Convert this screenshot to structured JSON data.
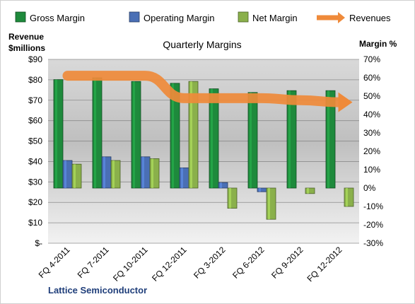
{
  "chart_data": {
    "type": "bar",
    "title": "Quarterly Margins",
    "categories": [
      "FQ 4-2011",
      "FQ 7-2011",
      "FQ 10-2011",
      "FQ 12-2011",
      "FQ 3-2012",
      "FQ 6-2012",
      "FQ 9-2012",
      "FQ 12-2012"
    ],
    "series": [
      {
        "name": "Gross Margin",
        "axis": "right",
        "color": "#1e8a3c",
        "values": [
          59,
          60,
          58,
          57,
          54,
          52,
          53,
          53
        ]
      },
      {
        "name": "Operating Margin",
        "axis": "right",
        "color": "#4a6fb5",
        "values": [
          15,
          17,
          17,
          11,
          3,
          -2,
          0,
          0
        ]
      },
      {
        "name": "Net Margin",
        "axis": "right",
        "color": "#8ab04b",
        "values": [
          13,
          15,
          16,
          58,
          -11,
          -17,
          -3,
          -10
        ]
      },
      {
        "name": "Revenues",
        "axis": "left",
        "type": "line",
        "color": "#ef8a3a",
        "values": [
          82,
          82,
          82,
          71,
          71,
          71,
          70,
          69
        ]
      }
    ],
    "y_left": {
      "label": "Revenue $millions",
      "ylim": [
        0,
        90
      ],
      "ticks": [
        "$-",
        "$10",
        "$20",
        "$30",
        "$40",
        "$50",
        "$60",
        "$70",
        "$80",
        "$90"
      ]
    },
    "y_right": {
      "label": "Margin %",
      "ylim": [
        -30,
        70
      ],
      "ticks": [
        "-30%",
        "-20%",
        "-10%",
        "0%",
        "10%",
        "20%",
        "30%",
        "40%",
        "50%",
        "60%",
        "70%"
      ]
    },
    "legend": [
      "Gross Margin",
      "Operating Margin",
      "Net Margin",
      "Revenues"
    ],
    "legend_position": "top",
    "grid": true
  },
  "header": {
    "left_axis_label_line1": "Revenue",
    "left_axis_label_line2": "$millions",
    "right_axis_label": "Margin  %"
  },
  "footer": {
    "company": "Lattice Semiconductor"
  }
}
